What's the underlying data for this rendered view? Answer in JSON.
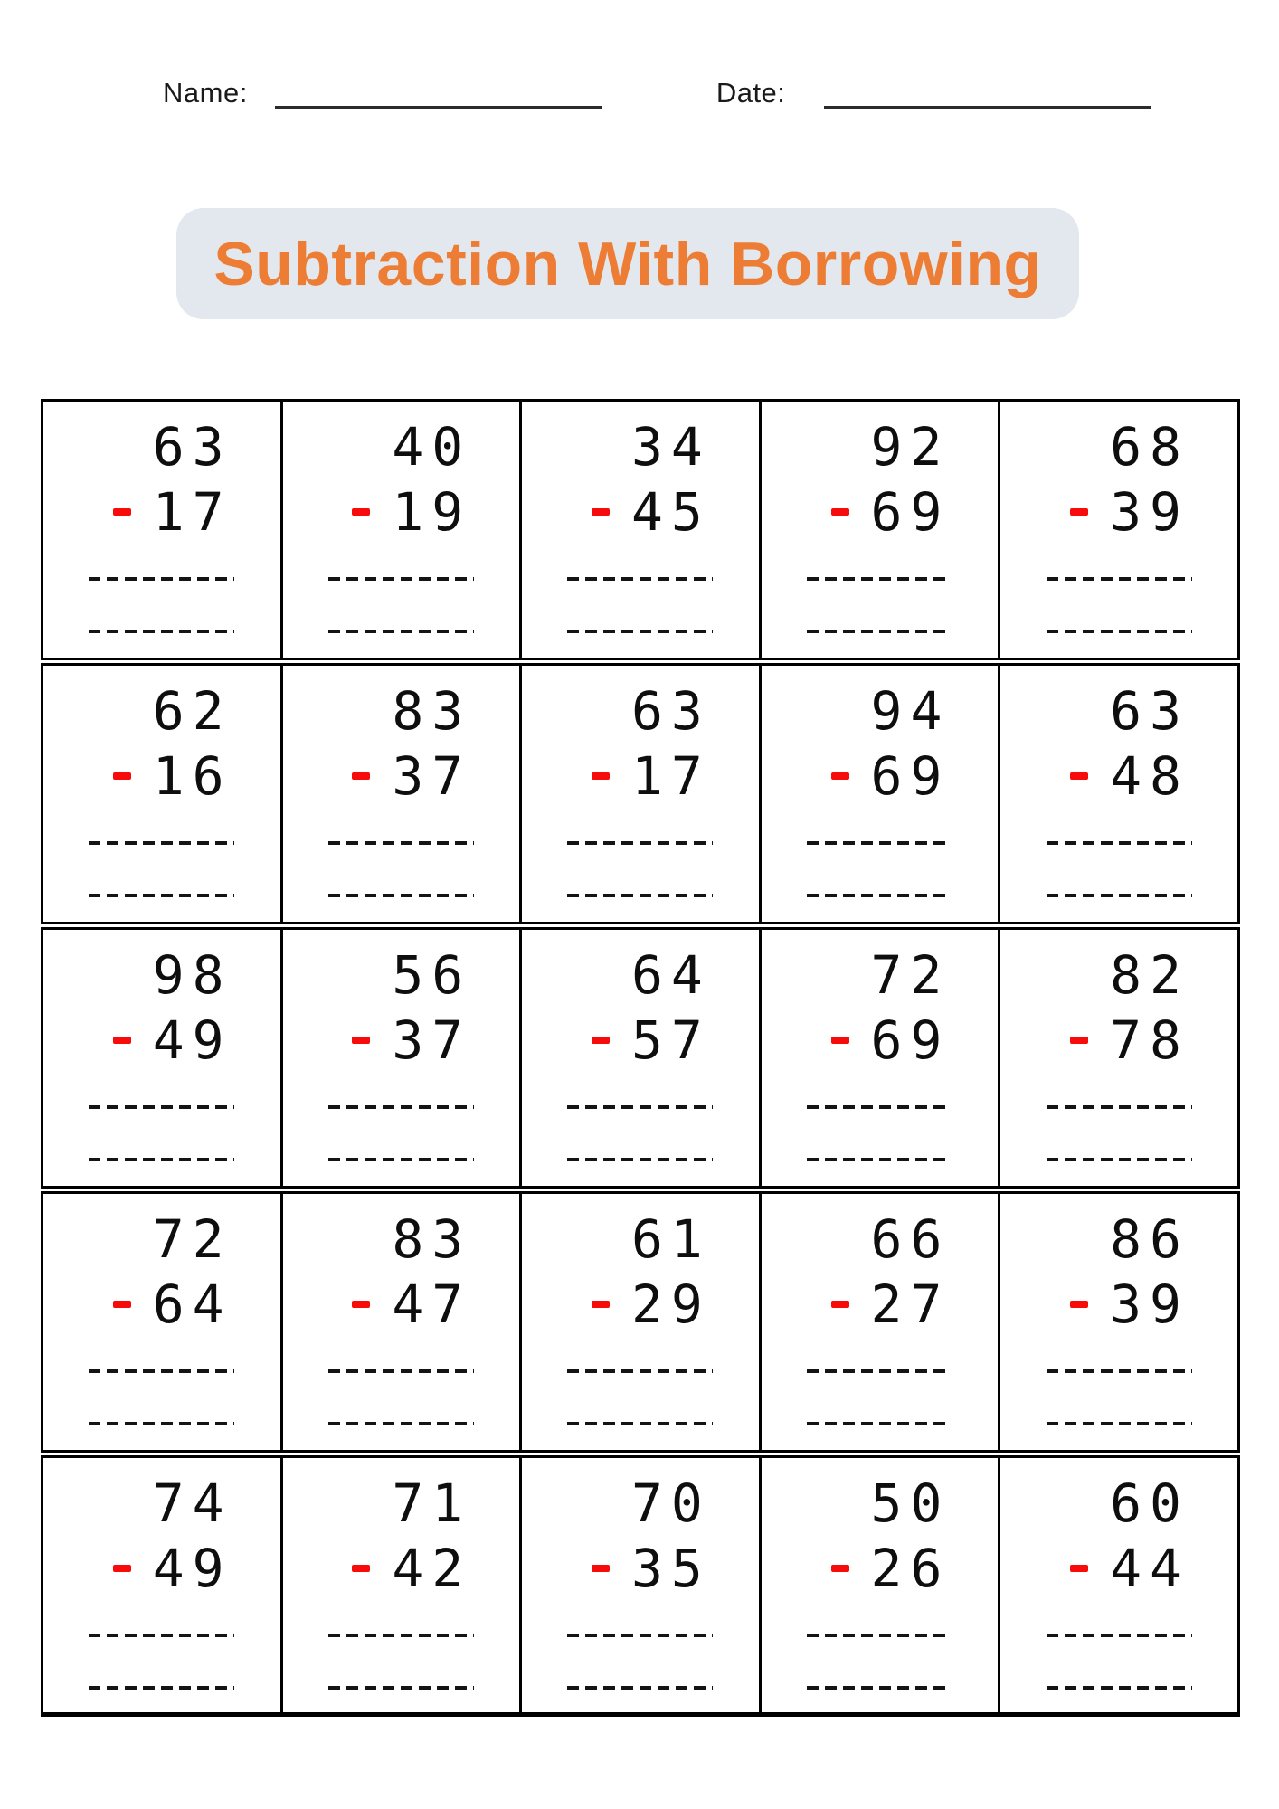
{
  "header": {
    "name_label": "Name:",
    "date_label": "Date:"
  },
  "title": "Subtraction With Borrowing",
  "colors": {
    "title_text": "#ED7D35",
    "title_bg": "#E3E8EE",
    "minus_sign": "#F80B0B",
    "ink": "#0E0E0E"
  },
  "answer_lines": 2,
  "problems": [
    [
      {
        "minuend": "63",
        "subtrahend": "17"
      },
      {
        "minuend": "40",
        "subtrahend": "19"
      },
      {
        "minuend": "34",
        "subtrahend": "45"
      },
      {
        "minuend": "92",
        "subtrahend": "69"
      },
      {
        "minuend": "68",
        "subtrahend": "39"
      }
    ],
    [
      {
        "minuend": "62",
        "subtrahend": "16"
      },
      {
        "minuend": "83",
        "subtrahend": "37"
      },
      {
        "minuend": "63",
        "subtrahend": "17"
      },
      {
        "minuend": "94",
        "subtrahend": "69"
      },
      {
        "minuend": "63",
        "subtrahend": "48"
      }
    ],
    [
      {
        "minuend": "98",
        "subtrahend": "49"
      },
      {
        "minuend": "56",
        "subtrahend": "37"
      },
      {
        "minuend": "64",
        "subtrahend": "57"
      },
      {
        "minuend": "72",
        "subtrahend": "69"
      },
      {
        "minuend": "82",
        "subtrahend": "78"
      }
    ],
    [
      {
        "minuend": "72",
        "subtrahend": "64"
      },
      {
        "minuend": "83",
        "subtrahend": "47"
      },
      {
        "minuend": "61",
        "subtrahend": "29"
      },
      {
        "minuend": "66",
        "subtrahend": "27"
      },
      {
        "minuend": "86",
        "subtrahend": "39"
      }
    ],
    [
      {
        "minuend": "74",
        "subtrahend": "49"
      },
      {
        "minuend": "71",
        "subtrahend": "42"
      },
      {
        "minuend": "70",
        "subtrahend": "35"
      },
      {
        "minuend": "50",
        "subtrahend": "26"
      },
      {
        "minuend": "60",
        "subtrahend": "44"
      }
    ]
  ]
}
